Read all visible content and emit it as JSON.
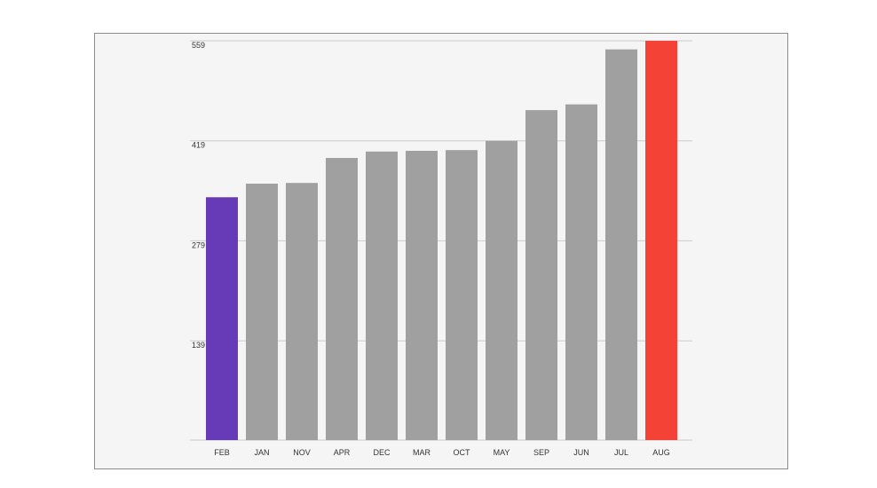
{
  "chart_data": {
    "type": "bar",
    "title": "",
    "xlabel": "",
    "ylabel": "",
    "categories": [
      "FEB",
      "JAN",
      "NOV",
      "APR",
      "DEC",
      "MAR",
      "OCT",
      "MAY",
      "SEP",
      "JUN",
      "JUL",
      "AUG"
    ],
    "values": [
      340,
      359,
      360,
      395,
      404,
      405,
      406,
      419,
      462,
      470,
      547,
      559
    ],
    "yticks": [
      139,
      279,
      419,
      559
    ],
    "ylim": [
      0,
      559
    ],
    "grid": true,
    "legend": "none",
    "colors": {
      "default": "#a0a0a0",
      "min": "#673ab7",
      "max": "#f44336",
      "grid": "#cccccc",
      "background": "#f5f5f5"
    }
  }
}
